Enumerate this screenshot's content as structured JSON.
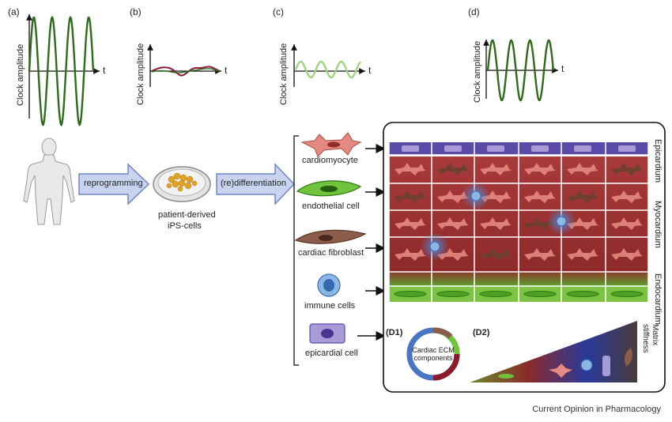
{
  "panels": {
    "a": "(a)",
    "b": "(b)",
    "c": "(c)",
    "d": "(d)",
    "d1": "(D1)",
    "d2": "(D2)"
  },
  "axes": {
    "ylabel": "Clock amplitude",
    "xlabel": "t"
  },
  "steps": {
    "reprogramming": "reprogramming",
    "dish_label_1": "patient-derived",
    "dish_label_2": "iPS-cells",
    "redifferentiation": "(re)differentiation"
  },
  "cells": [
    {
      "label": "cardiomyocyte"
    },
    {
      "label": "endothelial cell"
    },
    {
      "label": "cardiac fibroblast"
    },
    {
      "label": "immune cells"
    },
    {
      "label": "epicardial cell"
    }
  ],
  "tissue_layers": {
    "epicardium": "Epicardium",
    "myocardium": "Myocardium",
    "endocardium": "Endocardium"
  },
  "ecm": {
    "line1": "Cardiac ECM",
    "line2": "components"
  },
  "matrix": {
    "line1": "Matrix",
    "line2": "stiffness"
  },
  "credit": "Current Opinion in Pharmacology",
  "colors": {
    "wave_dark": "#2e6b1a",
    "wave_light": "#9fd47f",
    "wave_red": "#8b1a3a",
    "arrow_fill": "#c8d4ef",
    "arrow_stroke": "#6e86c4",
    "epicardium": "#5b4aa8",
    "myocardium": "#a83a3a",
    "endocardium": "#7cc243"
  }
}
